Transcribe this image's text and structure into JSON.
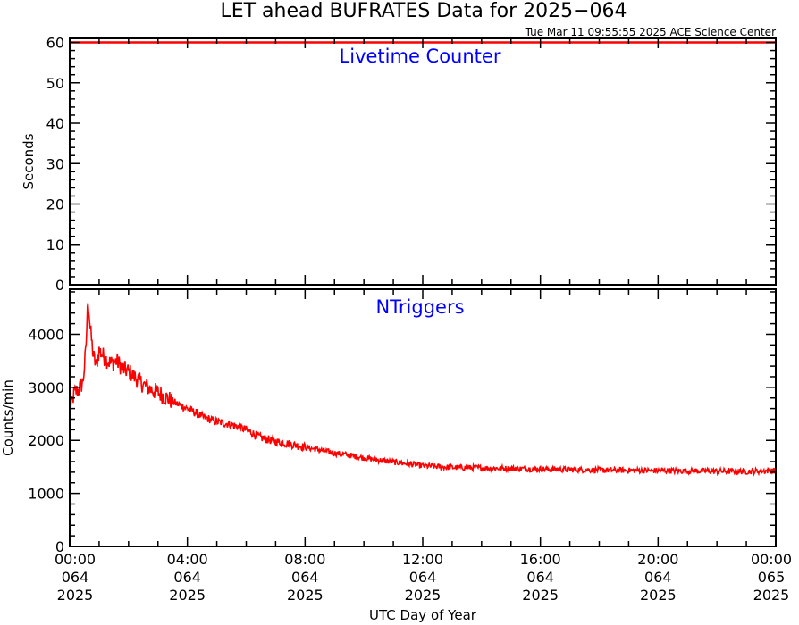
{
  "title": "LET ahead BUFRATES Data for 2025−064",
  "timestamp": "Tue Mar 11 09:55:55 2025 ACE Science Center",
  "colors": {
    "series": "#ff0000",
    "panel_label": "#0000ff",
    "axes": "#000000"
  },
  "chart_data": [
    {
      "type": "line",
      "panel_label": "Livetime Counter",
      "ylabel": "Seconds",
      "xlabel": "",
      "ylim": [
        0,
        61
      ],
      "yticks": [
        0,
        10,
        20,
        30,
        40,
        50,
        60
      ],
      "xlim_hours": [
        0,
        24
      ],
      "series": [
        {
          "x": [
            0,
            24
          ],
          "y": [
            60,
            60
          ]
        }
      ]
    },
    {
      "type": "line",
      "panel_label": "NTriggers",
      "ylabel": "Counts/min",
      "xlabel": "UTC Day of Year",
      "ylim": [
        0,
        4850
      ],
      "yticks": [
        0,
        1000,
        2000,
        3000,
        4000
      ],
      "xlim_hours": [
        0,
        24
      ],
      "xticks": [
        {
          "hour": 0,
          "lines": [
            "00:00",
            "064",
            "2025"
          ]
        },
        {
          "hour": 4,
          "lines": [
            "04:00",
            "064",
            "2025"
          ]
        },
        {
          "hour": 8,
          "lines": [
            "08:00",
            "064",
            "2025"
          ]
        },
        {
          "hour": 12,
          "lines": [
            "12:00",
            "064",
            "2025"
          ]
        },
        {
          "hour": 16,
          "lines": [
            "16:00",
            "064",
            "2025"
          ]
        },
        {
          "hour": 20,
          "lines": [
            "20:00",
            "064",
            "2025"
          ]
        },
        {
          "hour": 24,
          "lines": [
            "00:00",
            "065",
            "2025"
          ]
        }
      ],
      "series": [
        {
          "x": [
            0,
            0.15,
            0.3,
            0.45,
            0.55,
            0.62,
            0.7,
            0.8,
            0.9,
            1.0,
            1.2,
            1.4,
            1.6,
            1.8,
            2.0,
            2.2,
            2.5,
            2.8,
            3.0,
            3.3,
            3.6,
            4.0,
            4.5,
            5.0,
            5.5,
            6.0,
            6.5,
            7.0,
            7.5,
            8.0,
            8.5,
            9.0,
            9.5,
            10.0,
            10.5,
            11.0,
            11.5,
            12.0,
            13.0,
            14.0,
            15.0,
            16.0,
            17.0,
            18.0,
            19.0,
            20.0,
            21.0,
            22.0,
            23.0,
            24.0
          ],
          "y": [
            2500,
            2900,
            2950,
            3100,
            3700,
            4700,
            4100,
            3600,
            3400,
            3700,
            3550,
            3450,
            3500,
            3350,
            3300,
            3200,
            3050,
            2950,
            2900,
            2800,
            2700,
            2600,
            2450,
            2350,
            2300,
            2200,
            2050,
            1980,
            1930,
            1870,
            1820,
            1760,
            1720,
            1670,
            1630,
            1590,
            1560,
            1520,
            1490,
            1480,
            1470,
            1460,
            1450,
            1440,
            1435,
            1430,
            1425,
            1420,
            1415,
            1430
          ]
        }
      ]
    }
  ]
}
